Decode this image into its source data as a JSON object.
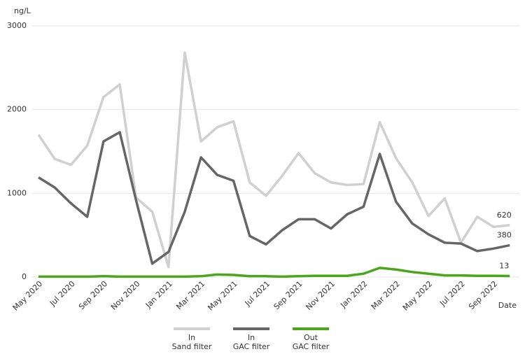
{
  "chart_data": {
    "type": "line",
    "y_label": "ng/L",
    "x_label": "Date",
    "categories": [
      "May 2020",
      null,
      "Jul 2020",
      null,
      "Sep 2020",
      null,
      "Nov 2020",
      null,
      "Jan 2021",
      null,
      "Mar 2021",
      null,
      "May 2021",
      null,
      "Jul 2021",
      null,
      "Sep 2021",
      null,
      "Nov 2021",
      null,
      "Jan 2022",
      null,
      "Mar 2022",
      null,
      "May 2022",
      null,
      "Jul 2022",
      null,
      "Sep 2022",
      null
    ],
    "series": [
      {
        "name": "In\nSand filter",
        "color": "#d0d0d0",
        "values": [
          1700,
          1410,
          1340,
          1570,
          2150,
          2300,
          950,
          780,
          120,
          2680,
          1620,
          1790,
          1860,
          1130,
          970,
          1210,
          1480,
          1240,
          1130,
          1100,
          1110,
          1850,
          1420,
          1130,
          730,
          940,
          410,
          720,
          600,
          620
        ]
      },
      {
        "name": "In\nGAC filter",
        "color": "#666666",
        "values": [
          1190,
          1070,
          880,
          720,
          1620,
          1730,
          920,
          160,
          300,
          780,
          1430,
          1220,
          1150,
          490,
          390,
          560,
          690,
          690,
          580,
          750,
          840,
          1470,
          900,
          640,
          510,
          410,
          400,
          310,
          340,
          380
        ]
      },
      {
        "name": "Out\nGAC filter",
        "color": "#4aa61a",
        "values": [
          5,
          5,
          5,
          5,
          10,
          5,
          5,
          5,
          5,
          5,
          10,
          30,
          25,
          10,
          10,
          5,
          10,
          15,
          15,
          15,
          40,
          110,
          90,
          60,
          40,
          20,
          20,
          15,
          15,
          13
        ]
      }
    ],
    "ylim": [
      0,
      3000
    ],
    "yticks": [
      0,
      1000,
      2000,
      3000
    ],
    "grid": true
  }
}
